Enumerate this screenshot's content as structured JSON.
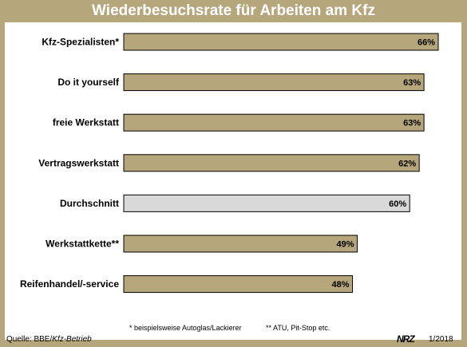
{
  "colors": {
    "frame": "#b6a67b",
    "bar": "#b6a67b",
    "bar_highlight": "#d9d9d9",
    "bar_stroke": "#000000",
    "title_text": "#ffffff"
  },
  "chart_data": {
    "type": "bar",
    "orientation": "horizontal",
    "title": "Wiederbesuchsrate für Arbeiten am Kfz",
    "categories": [
      "Kfz-Spezialisten*",
      "Do it yourself",
      "freie Werkstatt",
      "Vertragswerkstatt",
      "Durchschnitt",
      "Werkstattkette**",
      "Reifenhandel/-service"
    ],
    "values": [
      66,
      63,
      63,
      62,
      60,
      49,
      48
    ],
    "value_labels": [
      "66%",
      "63%",
      "63%",
      "62%",
      "60%",
      "49%",
      "48%"
    ],
    "highlight_index": 4,
    "xlim": [
      0,
      100
    ],
    "grid": false,
    "legend": "none"
  },
  "footnotes": {
    "note1": "* beispielsweise Autoglas/Lackierer",
    "note2": "** ATU, Pit-Stop etc."
  },
  "footer": {
    "source_prefix": "Quelle: BBE/",
    "source_italic": "Kfz-Betrieb",
    "logo": "NRZ",
    "date": "1/2018"
  }
}
